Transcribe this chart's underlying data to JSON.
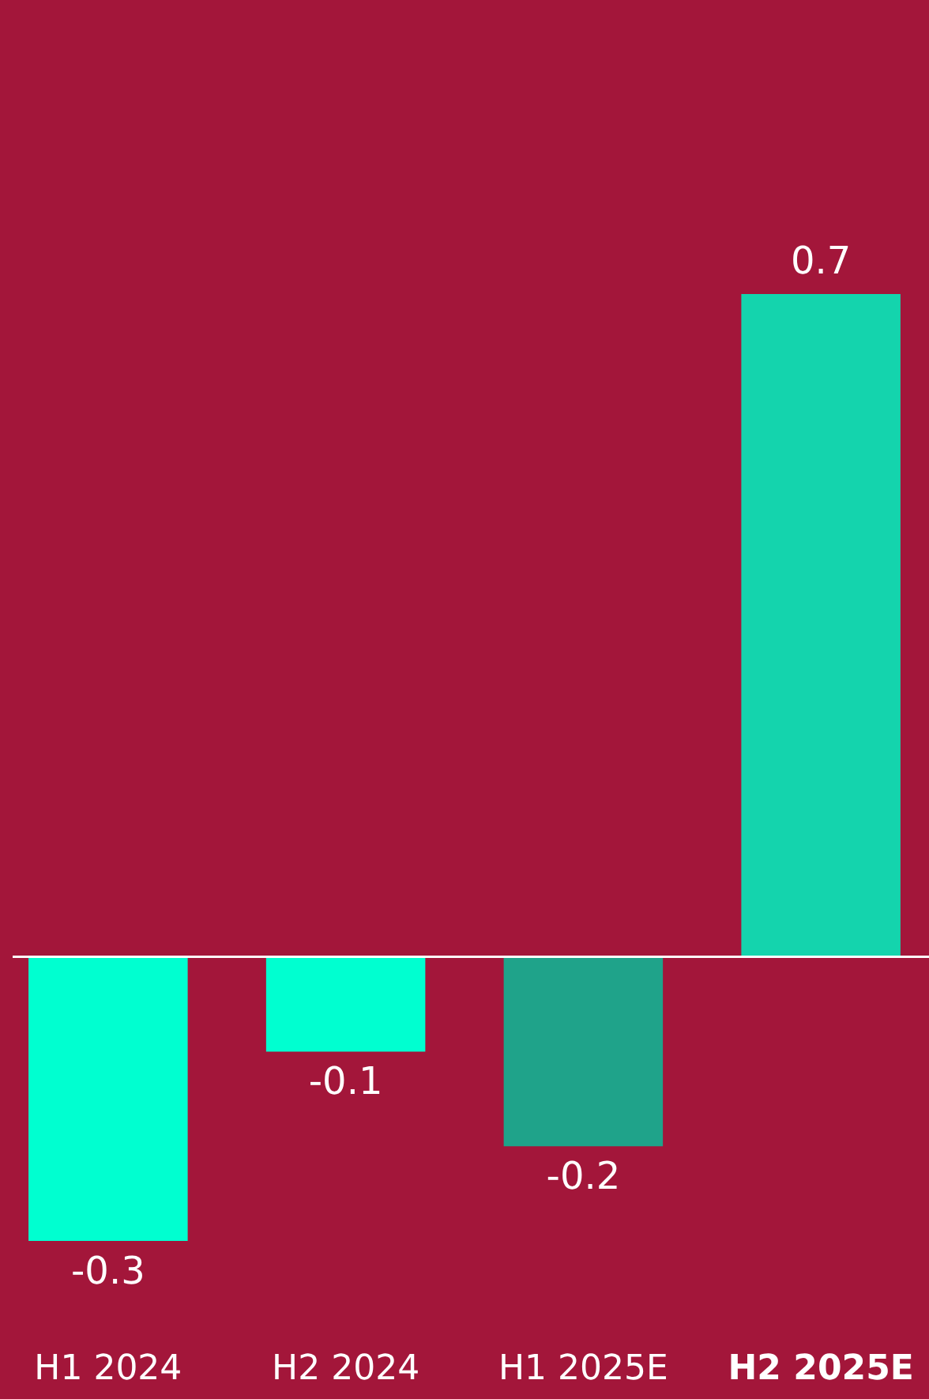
{
  "chart_data": {
    "type": "bar",
    "categories": [
      "H1 2024",
      "H2 2024",
      "H1 2025E",
      "H2 2025E"
    ],
    "values": [
      -0.3,
      -0.1,
      -0.2,
      0.7
    ],
    "colors": [
      "#00ffd0",
      "#00ffd0",
      "#1fa38a",
      "#14d4ad"
    ],
    "data_labels": true
  }
}
